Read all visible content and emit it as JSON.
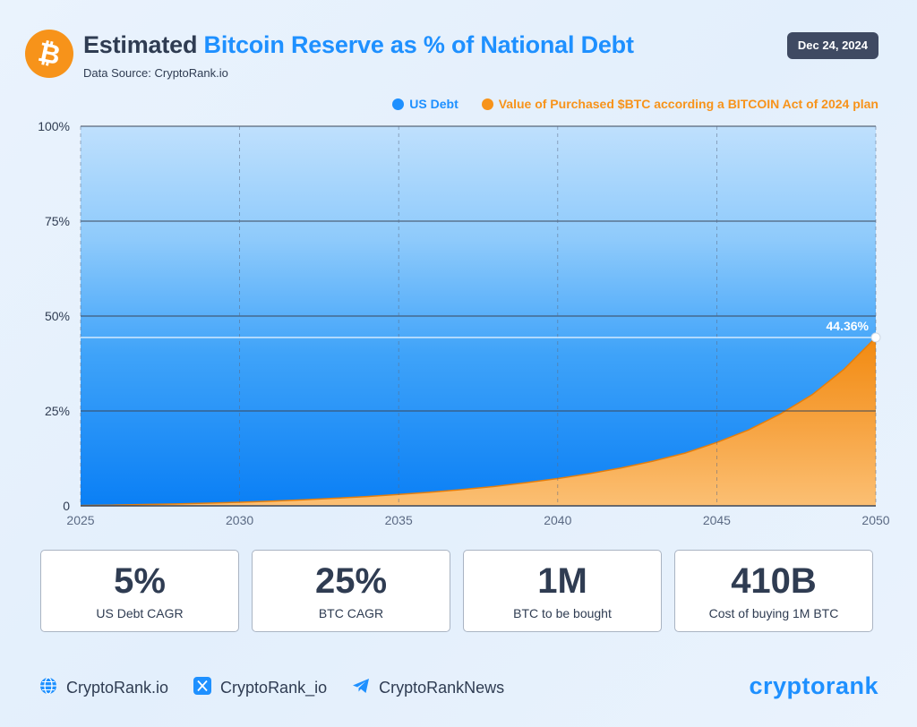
{
  "header": {
    "title_part1": "Estimated ",
    "title_part2": "Bitcoin Reserve as % of National Debt",
    "source": "Data Source: CryptoRank.io",
    "date": "Dec 24, 2024",
    "logo_icon": "bitcoin-icon"
  },
  "colors": {
    "accent": "#1e90ff",
    "btc_orange": "#f7931a",
    "text": "#2f3c52",
    "badge_bg": "#3f4a62"
  },
  "chart_data": {
    "type": "area",
    "title": "Estimated Bitcoin Reserve as % of National Debt",
    "xlabel": "",
    "ylabel": "",
    "x_ticks": [
      "2025",
      "2030",
      "2035",
      "2040",
      "2045",
      "2050"
    ],
    "y_ticks": [
      "0",
      "25%",
      "50%",
      "75%",
      "100%"
    ],
    "xlim": [
      2025,
      2050
    ],
    "ylim": [
      0,
      100
    ],
    "grid": true,
    "legend_position": "top-right",
    "series": [
      {
        "name": "US Debt",
        "color": "#1e90ff",
        "x": [
          2025,
          2050
        ],
        "y": [
          100,
          100
        ]
      },
      {
        "name": "Value of Purchased $BTC according a BITCOIN Act of 2024 plan",
        "color": "#f7931a",
        "x": [
          2025,
          2026,
          2027,
          2028,
          2029,
          2030,
          2031,
          2032,
          2033,
          2034,
          2035,
          2036,
          2037,
          2038,
          2039,
          2040,
          2041,
          2042,
          2043,
          2044,
          2045,
          2046,
          2047,
          2048,
          2049,
          2050
        ],
        "y": [
          0.1,
          0.2,
          0.35,
          0.5,
          0.7,
          0.95,
          1.25,
          1.6,
          2.0,
          2.45,
          3.0,
          3.6,
          4.3,
          5.1,
          6.1,
          7.2,
          8.5,
          10.0,
          11.8,
          13.9,
          16.7,
          20.0,
          24.2,
          29.3,
          36.0,
          44.36
        ]
      }
    ],
    "annotation": {
      "x": 2050,
      "y": 44.36,
      "label": "44.36%"
    }
  },
  "stats": [
    {
      "value": "5%",
      "label": "US Debt CAGR"
    },
    {
      "value": "25%",
      "label": "BTC CAGR"
    },
    {
      "value": "1M",
      "label": "BTC to be bought"
    },
    {
      "value": "410B",
      "label": "Cost of buying 1M BTC"
    }
  ],
  "footer": {
    "links": [
      {
        "icon": "globe-icon",
        "label": "CryptoRank.io"
      },
      {
        "icon": "x-logo-icon",
        "label": "CryptoRank_io"
      },
      {
        "icon": "telegram-icon",
        "label": "CryptoRankNews"
      }
    ],
    "brand": "cryptorank"
  }
}
